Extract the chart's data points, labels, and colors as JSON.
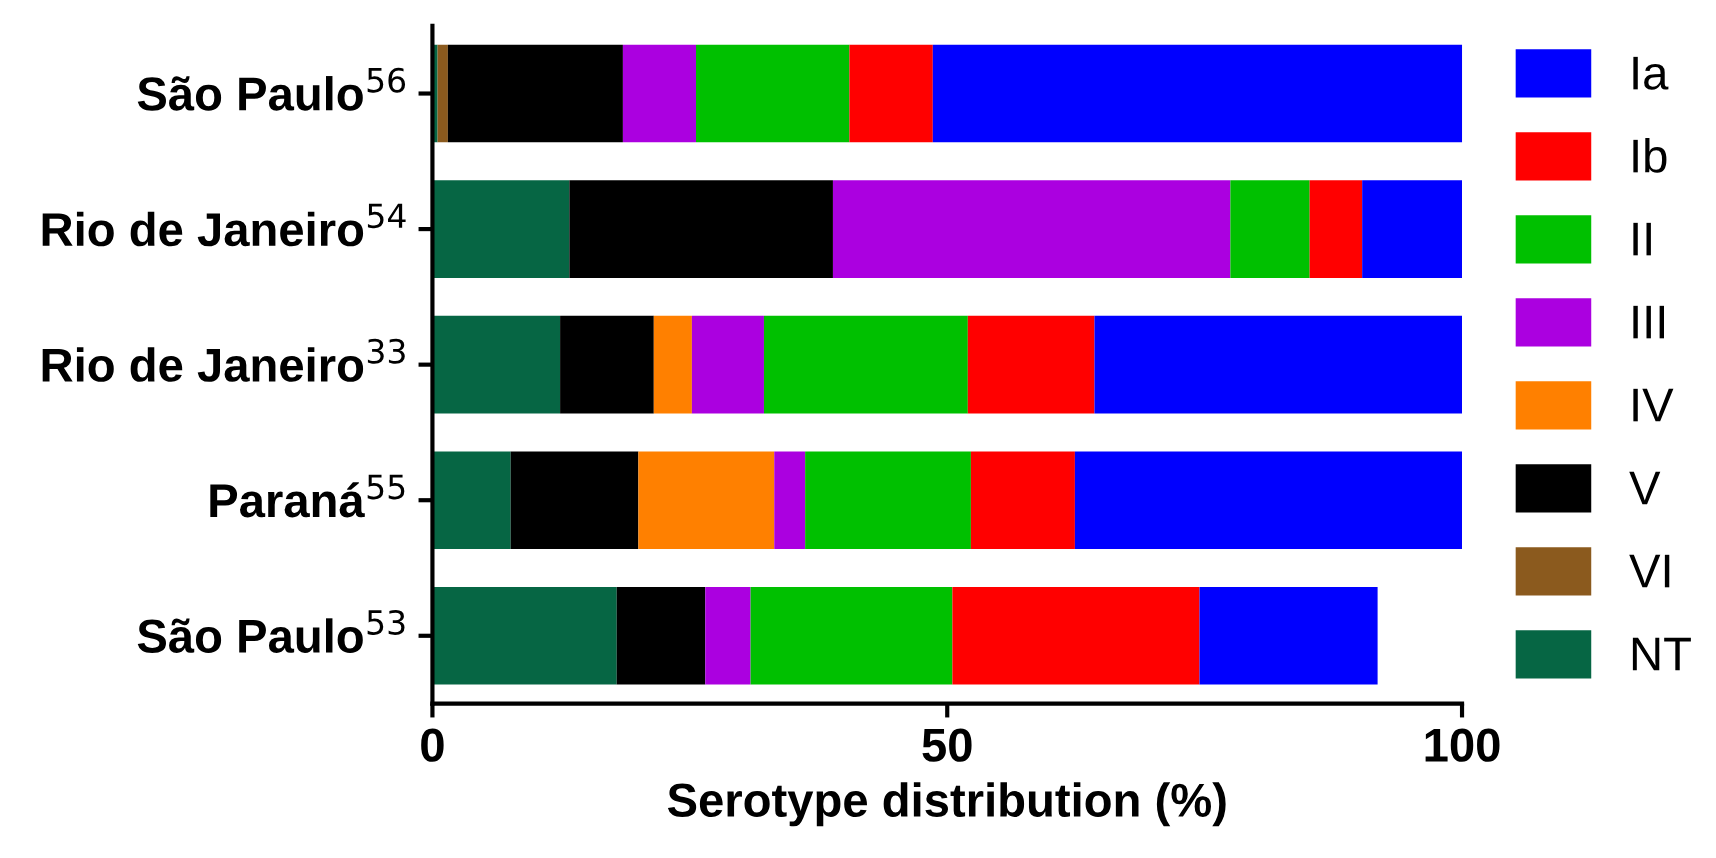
{
  "chart_data": {
    "type": "bar",
    "orientation": "horizontal",
    "stacked": true,
    "categories": [
      "São Paulo$^{56}$",
      "Rio de Janeiro$^{54}$",
      "Rio de Janeiro$^{33}$",
      "Paraná$^{55}$",
      "São Paulo$^{53}$"
    ],
    "series": [
      {
        "name": "NT",
        "color": "#066644",
        "values": [
          0.5,
          13.3,
          12.4,
          7.6,
          17.9
        ]
      },
      {
        "name": "VI",
        "color": "#8b5a1e",
        "values": [
          1.0,
          0,
          0,
          0,
          0
        ]
      },
      {
        "name": "V",
        "color": "#000000",
        "values": [
          17.0,
          25.6,
          9.1,
          12.4,
          8.6
        ]
      },
      {
        "name": "IV",
        "color": "#ff8000",
        "values": [
          0,
          0,
          3.7,
          13.2,
          0
        ]
      },
      {
        "name": "III",
        "color": "#ab00e0",
        "values": [
          7.1,
          38.6,
          7.0,
          3.0,
          4.4
        ]
      },
      {
        "name": "II",
        "color": "#00c000",
        "values": [
          14.9,
          7.7,
          19.8,
          16.1,
          19.6
        ]
      },
      {
        "name": "Ib",
        "color": "#ff0000",
        "values": [
          8.1,
          5.1,
          12.3,
          10.1,
          24.0
        ]
      },
      {
        "name": "Ia",
        "color": "#0000ff",
        "values": [
          51.5,
          9.7,
          35.7,
          37.6,
          17.3
        ]
      }
    ],
    "xlabel": "Serotype distribution (%)",
    "xlim": [
      0,
      100
    ],
    "xticks": [
      0,
      50,
      100
    ],
    "grid": false,
    "legend": "right"
  }
}
